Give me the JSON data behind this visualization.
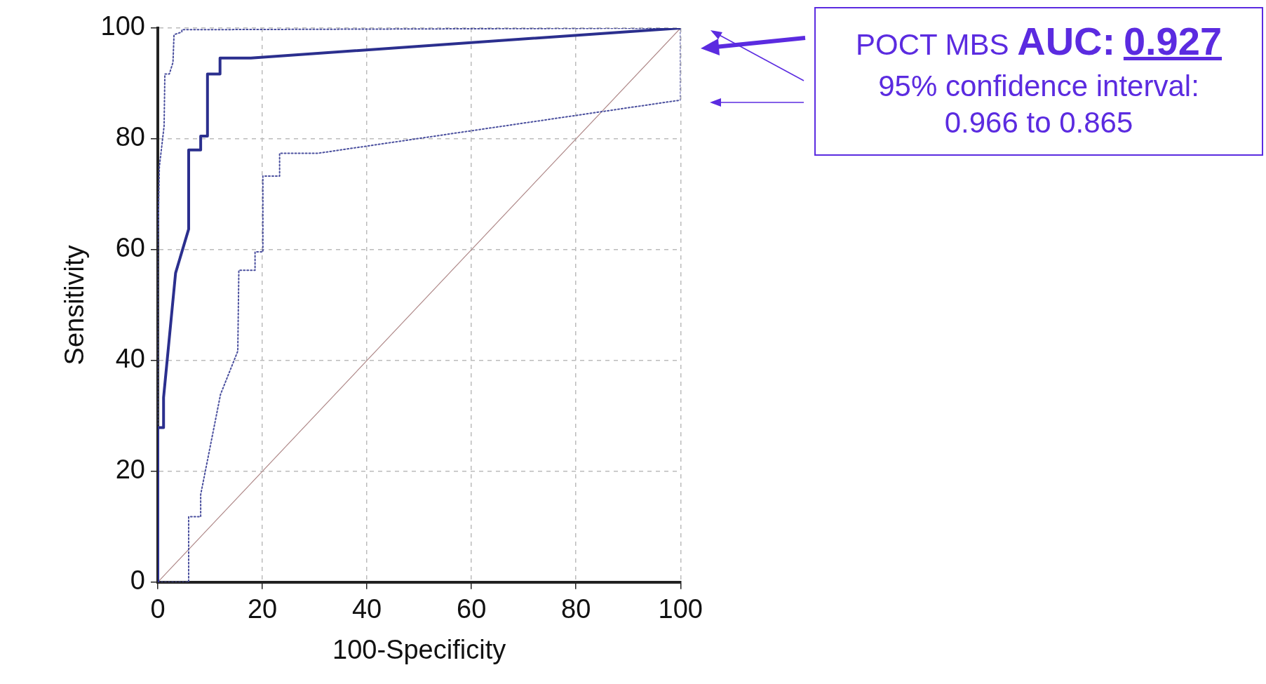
{
  "chart_data": {
    "type": "line",
    "xlabel": "100-Specificity",
    "ylabel": "Sensitivity",
    "xlim": [
      0,
      100
    ],
    "ylim": [
      0,
      100
    ],
    "xticks": [
      0,
      20,
      40,
      60,
      80,
      100
    ],
    "yticks": [
      0,
      20,
      40,
      60,
      80,
      100
    ],
    "grid": true,
    "legend": false,
    "marker": "none",
    "series": [
      {
        "color": "#2b2f8e",
        "line_style": "solid",
        "x": [
          0,
          0,
          1.1,
          1.1,
          3.4,
          5.9,
          5.9,
          8.2,
          8.2,
          9.5,
          9.5,
          11.9,
          11.9,
          17.8,
          100
        ],
        "values": [
          0,
          27.9,
          27.9,
          33.3,
          55.8,
          63.7,
          78,
          78,
          80.5,
          80.5,
          91.7,
          91.7,
          94.6,
          94.6,
          100
        ]
      },
      {
        "color": "#4a4f9e",
        "line_style": "dotted",
        "x": [
          0,
          0,
          0.3,
          1.2,
          1.35,
          2.2,
          2.9,
          3.1,
          4.6,
          4.6,
          100
        ],
        "values": [
          0,
          60,
          75,
          82.3,
          91.7,
          91.7,
          93.8,
          98.8,
          99.3,
          99.7,
          100
        ]
      },
      {
        "color": "#4a4f9e",
        "line_style": "dotted",
        "x": [
          0,
          5.9,
          5.9,
          8.2,
          8.2,
          12,
          15.3,
          15.5,
          18.6,
          18.6,
          20.1,
          20.1,
          23.3,
          23.3,
          30.6,
          100,
          100
        ],
        "values": [
          0,
          0,
          11.8,
          11.8,
          15.8,
          33.9,
          41.7,
          56.3,
          56.3,
          59.6,
          59.6,
          73.3,
          73.3,
          77.4,
          77.4,
          87,
          100
        ]
      },
      {
        "color": "#b08a8a",
        "line_style": "solid",
        "x": [
          0,
          100
        ],
        "values": [
          0,
          100
        ]
      }
    ],
    "annotations": [
      "POCT MBS",
      "AUC:",
      "0.927",
      "95% confidence interval: 0.966 to 0.865"
    ]
  }
}
